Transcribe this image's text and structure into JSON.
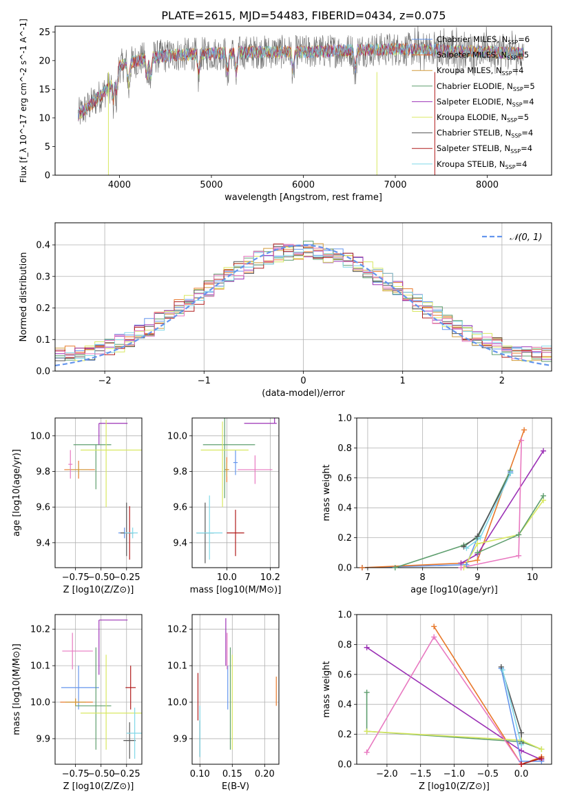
{
  "figure": {
    "title": "PLATE=2615, MJD=54483, FIBERID=0434, z=0.075"
  },
  "colors": {
    "chabrier_miles": "#6495ed",
    "salpeter_miles": "#e8782a",
    "kroupa_miles": "#d19a3a",
    "chabrier_elodie": "#5e9e6e",
    "salpeter_elodie": "#9b30b5",
    "kroupa_elodie": "#d8e860",
    "chabrier_stelib": "#555555",
    "salpeter_stelib": "#b01c1c",
    "kroupa_stelib": "#80d8e8",
    "pink": "#e878c0",
    "normal_line": "#6495ed",
    "grid": "#b0b0b0"
  },
  "chart_data": [
    {
      "id": "spectrum",
      "type": "line",
      "title": "PLATE=2615, MJD=54483, FIBERID=0434, z=0.075",
      "xlabel": "wavelength [Angstrom, rest frame]",
      "ylabel": "Flux [f_λ 10^-17 erg cm^-2 s^-1 A^-1]",
      "xlim": [
        3300,
        8700
      ],
      "ylim": [
        0,
        26
      ],
      "xticks": [
        "4000",
        "5000",
        "6000",
        "7000",
        "8000"
      ],
      "yticks": [
        "0",
        "5",
        "10",
        "15",
        "20",
        "25"
      ],
      "legend_placement": "right",
      "legend": [
        {
          "label": "Chabrier MILES, N",
          "sub": "SSP",
          "suffix": "=6",
          "color_key": "chabrier_miles"
        },
        {
          "label": "Salpeter MILES, N",
          "sub": "SSP",
          "suffix": "=5",
          "color_key": "salpeter_miles"
        },
        {
          "label": "Kroupa MILES, N",
          "sub": "SSP",
          "suffix": "=4",
          "color_key": "kroupa_miles"
        },
        {
          "label": "Chabrier ELODIE, N",
          "sub": "SSP",
          "suffix": "=5",
          "color_key": "chabrier_elodie"
        },
        {
          "label": "Salpeter ELODIE, N",
          "sub": "SSP",
          "suffix": "=4",
          "color_key": "salpeter_elodie"
        },
        {
          "label": "Kroupa ELODIE, N",
          "sub": "SSP",
          "suffix": "=5",
          "color_key": "kroupa_elodie"
        },
        {
          "label": "Chabrier STELIB, N",
          "sub": "SSP",
          "suffix": "=4",
          "color_key": "chabrier_stelib"
        },
        {
          "label": "Salpeter STELIB, N",
          "sub": "SSP",
          "suffix": "=4",
          "color_key": "salpeter_stelib"
        },
        {
          "label": "Kroupa STELIB, N",
          "sub": "SSP",
          "suffix": "=4",
          "color_key": "kroupa_stelib"
        }
      ],
      "continuum_x": [
        3550,
        3700,
        3900,
        4000,
        4300,
        4600,
        5000,
        5500,
        6000,
        6500,
        7000,
        7500,
        8000,
        8400
      ],
      "continuum_y": [
        10.5,
        12.5,
        15.5,
        19.0,
        20.5,
        21.0,
        21.2,
        21.5,
        21.5,
        21.8,
        22.0,
        21.8,
        21.5,
        21.2
      ]
    },
    {
      "id": "residuals",
      "type": "area",
      "xlabel": "(data-model)/error",
      "ylabel": "Normed distribution",
      "xlim": [
        -2.5,
        2.5
      ],
      "ylim": [
        0,
        0.47
      ],
      "xticks": [
        "−2",
        "−1",
        "0",
        "1",
        "2"
      ],
      "yticks": [
        "0.0",
        "0.1",
        "0.2",
        "0.3",
        "0.4"
      ],
      "legend": [
        {
          "label": "𝒩(0, 1)",
          "color_key": "normal_line"
        }
      ],
      "legend_placement": "top-right",
      "bin_width": 0.1,
      "normal_curve": {
        "mu": 0,
        "sigma": 1
      }
    },
    {
      "id": "age-vs-Z",
      "type": "scatter",
      "xlabel": "Z [log10(Z/Z⊙)]",
      "ylabel": "age [log10(age/yr)]",
      "xlim": [
        -0.95,
        -0.1
      ],
      "ylim": [
        9.26,
        10.1
      ],
      "xticks": [
        "−0.75",
        "−0.50",
        "−0.25"
      ],
      "yticks": [
        "9.4",
        "9.6",
        "9.8",
        "10.0"
      ],
      "points": [
        {
          "c": "chabrier_miles",
          "x": -0.27,
          "y": 9.455,
          "xerr": [
            0.06,
            0.04
          ],
          "yerr": [
            0.03,
            0.03
          ]
        },
        {
          "c": "salpeter_miles",
          "x": -0.72,
          "y": 9.81,
          "xerr": [
            0.14,
            0.16
          ],
          "yerr": [
            0.05,
            0.05
          ]
        },
        {
          "c": "kroupa_miles",
          "x": -0.72,
          "y": 9.81,
          "xerr": [
            0.1,
            0.1
          ],
          "yerr": [
            0.03,
            0.03
          ]
        },
        {
          "c": "chabrier_elodie",
          "x": -0.55,
          "y": 9.95,
          "xerr": [
            0.22,
            0.15
          ],
          "yerr": [
            0.25,
            0.0
          ]
        },
        {
          "c": "salpeter_elodie",
          "x": -0.52,
          "y": 10.07,
          "xerr": [
            0.0,
            0.28
          ],
          "yerr": [
            0.12,
            0.0
          ]
        },
        {
          "c": "kroupa_elodie",
          "x": -0.45,
          "y": 9.92,
          "xerr": [
            0.25,
            0.35
          ],
          "yerr": [
            0.32,
            0.17
          ]
        },
        {
          "c": "chabrier_stelib",
          "x": -0.25,
          "y": 9.455,
          "xerr": [
            0.06,
            0.06
          ],
          "yerr": [
            0.13,
            0.17
          ]
        },
        {
          "c": "salpeter_stelib",
          "x": -0.22,
          "y": 9.455,
          "xerr": [
            0.04,
            0.04
          ],
          "yerr": [
            0.15,
            0.15
          ]
        },
        {
          "c": "kroupa_stelib",
          "x": -0.19,
          "y": 9.455,
          "xerr": [
            0.08,
            0.05
          ],
          "yerr": [
            0.03,
            0.03
          ]
        },
        {
          "c": "pink",
          "x": -0.8,
          "y": 9.84,
          "xerr": [
            0.02,
            0.02
          ],
          "yerr": [
            0.08,
            0.08
          ]
        }
      ]
    },
    {
      "id": "age-vs-mass",
      "type": "scatter",
      "xlabel": "mass [log10(M/M⊙)]",
      "ylabel": "",
      "xlim": [
        9.84,
        10.24
      ],
      "ylim": [
        9.26,
        10.1
      ],
      "xticks": [
        "10.0",
        "10.2"
      ],
      "yticks": [
        "9.4",
        "9.6",
        "9.8",
        "10.0"
      ],
      "points": [
        {
          "c": "chabrier_miles",
          "x": 10.04,
          "y": 9.85,
          "xerr": [
            0.01,
            0.01
          ],
          "yerr": [
            0.07,
            0.07
          ]
        },
        {
          "c": "salpeter_miles",
          "x": 10.0,
          "y": 9.81,
          "xerr": [
            0.01,
            0.01
          ],
          "yerr": [
            0.07,
            0.07
          ]
        },
        {
          "c": "kroupa_miles",
          "x": 10.0,
          "y": 9.81,
          "xerr": [
            0.01,
            0.01
          ],
          "yerr": [
            0.04,
            0.04
          ]
        },
        {
          "c": "chabrier_elodie",
          "x": 9.99,
          "y": 9.95,
          "xerr": [
            0.1,
            0.14
          ],
          "yerr": [
            0.3,
            0.15
          ]
        },
        {
          "c": "salpeter_elodie",
          "x": 10.22,
          "y": 10.07,
          "xerr": [
            0.14,
            0.01
          ],
          "yerr": [
            0.0,
            0.16
          ]
        },
        {
          "c": "kroupa_elodie",
          "x": 9.98,
          "y": 9.92,
          "xerr": [
            0.1,
            0.12
          ],
          "yerr": [
            0.32,
            0.16
          ]
        },
        {
          "c": "chabrier_stelib",
          "x": 9.9,
          "y": 9.455,
          "xerr": [
            0.04,
            0.04
          ],
          "yerr": [
            0.17,
            0.17
          ]
        },
        {
          "c": "salpeter_stelib",
          "x": 10.04,
          "y": 9.455,
          "xerr": [
            0.04,
            0.04
          ],
          "yerr": [
            0.13,
            0.13
          ]
        },
        {
          "c": "kroupa_stelib",
          "x": 9.92,
          "y": 9.455,
          "xerr": [
            0.06,
            0.06
          ],
          "yerr": [
            0.15,
            0.21
          ]
        },
        {
          "c": "pink",
          "x": 10.13,
          "y": 9.81,
          "xerr": [
            0.08,
            0.08
          ],
          "yerr": [
            0.08,
            0.08
          ]
        }
      ]
    },
    {
      "id": "massweight-vs-age",
      "type": "line",
      "xlabel": "age [log10(age/yr)]",
      "ylabel": "mass weight",
      "xlim": [
        6.8,
        10.35
      ],
      "ylim": [
        0,
        1.0
      ],
      "xticks": [
        "7",
        "8",
        "9",
        "10"
      ],
      "yticks": [
        "0.0",
        "0.2",
        "0.4",
        "0.6",
        "0.8",
        "1.0"
      ],
      "series": [
        {
          "c": "chabrier_miles",
          "x": [
            6.9,
            8.8,
            9.0,
            9.6
          ],
          "y": [
            0.0,
            0.02,
            0.2,
            0.64
          ]
        },
        {
          "c": "salpeter_miles",
          "x": [
            6.9,
            8.7,
            9.0,
            9.85
          ],
          "y": [
            0.0,
            0.03,
            0.05,
            0.92
          ]
        },
        {
          "c": "chabrier_elodie",
          "x": [
            7.5,
            8.75,
            9.0,
            9.6
          ],
          "y": [
            0.0,
            0.15,
            0.2,
            0.65
          ]
        },
        {
          "c": "salpeter_elodie",
          "x": [
            8.7,
            9.0,
            10.2
          ],
          "y": [
            0.03,
            0.09,
            0.78
          ]
        },
        {
          "c": "kroupa_elodie",
          "x": [
            8.75,
            9.0,
            9.75,
            10.2
          ],
          "y": [
            0.0,
            0.16,
            0.22,
            0.45
          ]
        },
        {
          "c": "chabrier_stelib",
          "x": [
            8.75,
            9.0,
            9.6
          ],
          "y": [
            0.14,
            0.21,
            0.63
          ]
        },
        {
          "c": "kroupa_stelib",
          "x": [
            8.8,
            9.05,
            9.6
          ],
          "y": [
            0.13,
            0.2,
            0.63
          ]
        },
        {
          "c": "chabrier_elodie",
          "x": [
            9.0,
            9.75,
            10.2
          ],
          "y": [
            0.1,
            0.22,
            0.48
          ]
        },
        {
          "c": "pink",
          "x": [
            8.7,
            9.75,
            9.8
          ],
          "y": [
            0.0,
            0.08,
            0.85
          ]
        }
      ]
    },
    {
      "id": "mass-vs-Z",
      "type": "scatter",
      "xlabel": "Z [log10(Z/Z⊙)]",
      "ylabel": "mass [log10(M/M⊙)]",
      "xlim": [
        -0.95,
        -0.1
      ],
      "ylim": [
        9.83,
        10.24
      ],
      "xticks": [
        "−0.75",
        "−0.50",
        "−0.25"
      ],
      "yticks": [
        "9.9",
        "10.0",
        "10.1",
        "10.2"
      ],
      "points": [
        {
          "c": "chabrier_miles",
          "x": -0.72,
          "y": 10.04,
          "xerr": [
            0.17,
            0.2
          ],
          "yerr": [
            0.06,
            0.06
          ]
        },
        {
          "c": "salpeter_miles",
          "x": -0.75,
          "y": 10.0,
          "xerr": [
            0.15,
            0.17
          ],
          "yerr": [
            0.01,
            0.01
          ]
        },
        {
          "c": "kroupa_miles",
          "x": -0.75,
          "y": 10.0,
          "xerr": [
            0.1,
            0.1
          ],
          "yerr": [
            0.01,
            0.01
          ]
        },
        {
          "c": "chabrier_elodie",
          "x": -0.55,
          "y": 9.99,
          "xerr": [
            0.2,
            0.15
          ],
          "yerr": [
            0.12,
            0.16
          ]
        },
        {
          "c": "salpeter_elodie",
          "x": -0.52,
          "y": 10.225,
          "xerr": [
            0.0,
            0.28
          ],
          "yerr": [
            0.15,
            0.0
          ]
        },
        {
          "c": "kroupa_elodie",
          "x": -0.45,
          "y": 9.97,
          "xerr": [
            0.25,
            0.35
          ],
          "yerr": [
            0.1,
            0.16
          ]
        },
        {
          "c": "chabrier_stelib",
          "x": -0.22,
          "y": 9.895,
          "xerr": [
            0.06,
            0.06
          ],
          "yerr": [
            0.05,
            0.05
          ]
        },
        {
          "c": "salpeter_stelib",
          "x": -0.21,
          "y": 10.04,
          "xerr": [
            0.05,
            0.05
          ],
          "yerr": [
            0.06,
            0.06
          ]
        },
        {
          "c": "kroupa_stelib",
          "x": -0.17,
          "y": 9.915,
          "xerr": [
            0.08,
            0.08
          ],
          "yerr": [
            0.07,
            0.07
          ]
        },
        {
          "c": "pink",
          "x": -0.78,
          "y": 10.14,
          "xerr": [
            0.1,
            0.2
          ],
          "yerr": [
            0.05,
            0.05
          ]
        }
      ]
    },
    {
      "id": "mass-vs-EBV",
      "type": "scatter",
      "xlabel": "E(B-V)",
      "ylabel": "",
      "xlim": [
        0.088,
        0.222
      ],
      "ylim": [
        9.83,
        10.24
      ],
      "xticks": [
        "0.10",
        "0.15",
        "0.20"
      ],
      "yticks": [
        "9.9",
        "10.0",
        "10.1",
        "10.2"
      ],
      "points": [
        {
          "c": "chabrier_miles",
          "x": 0.143,
          "y": 10.04,
          "xerr": [
            0.0,
            0.0
          ],
          "yerr": [
            0.06,
            0.06
          ]
        },
        {
          "c": "salpeter_miles",
          "x": 0.218,
          "y": 10.03,
          "xerr": [
            0.0,
            0.0
          ],
          "yerr": [
            0.04,
            0.04
          ]
        },
        {
          "c": "chabrier_elodie",
          "x": 0.147,
          "y": 9.99,
          "xerr": [
            0.0,
            0.0
          ],
          "yerr": [
            0.12,
            0.16
          ]
        },
        {
          "c": "salpeter_elodie",
          "x": 0.14,
          "y": 10.2,
          "xerr": [
            0.0,
            0.0
          ],
          "yerr": [
            0.1,
            0.03
          ]
        },
        {
          "c": "kroupa_elodie",
          "x": 0.15,
          "y": 9.97,
          "xerr": [
            0.0,
            0.0
          ],
          "yerr": [
            0.1,
            0.16
          ]
        },
        {
          "c": "chabrier_stelib",
          "x": 0.1,
          "y": 9.9,
          "xerr": [
            0.0,
            0.0
          ],
          "yerr": [
            0.05,
            0.05
          ]
        },
        {
          "c": "salpeter_stelib",
          "x": 0.097,
          "y": 10.03,
          "xerr": [
            0.0,
            0.0
          ],
          "yerr": [
            0.08,
            0.05
          ]
        },
        {
          "c": "kroupa_stelib",
          "x": 0.1,
          "y": 9.92,
          "xerr": [
            0.0,
            0.0
          ],
          "yerr": [
            0.07,
            0.07
          ]
        },
        {
          "c": "pink",
          "x": 0.142,
          "y": 10.14,
          "xerr": [
            0.0,
            0.0
          ],
          "yerr": [
            0.05,
            0.05
          ]
        }
      ]
    },
    {
      "id": "massweight-vs-Z",
      "type": "line",
      "xlabel": "Z [log10(Z/Z⊙)]",
      "ylabel": "mass weight",
      "xlim": [
        -2.45,
        0.45
      ],
      "ylim": [
        0,
        1.0
      ],
      "xticks": [
        "−2.0",
        "−1.5",
        "−1.0",
        "−0.5",
        "0.0"
      ],
      "yticks": [
        "0.0",
        "0.2",
        "0.4",
        "0.6",
        "0.8",
        "1.0"
      ],
      "series": [
        {
          "c": "salpeter_miles",
          "x": [
            -1.3,
            0.0,
            0.3
          ],
          "y": [
            0.92,
            0.0,
            0.05
          ]
        },
        {
          "c": "salpeter_elodie",
          "x": [
            -2.3,
            0.0,
            0.3
          ],
          "y": [
            0.78,
            0.09,
            0.03
          ]
        },
        {
          "c": "chabrier_elodie",
          "x": [
            -2.3,
            -2.3,
            0.0,
            0.3
          ],
          "y": [
            0.48,
            0.22,
            0.15,
            0.1
          ]
        },
        {
          "c": "kroupa_elodie",
          "x": [
            -2.3,
            0.0,
            0.3
          ],
          "y": [
            0.22,
            0.16,
            0.1
          ]
        },
        {
          "c": "chabrier_miles",
          "x": [
            -0.3,
            0.0,
            0.3
          ],
          "y": [
            0.64,
            0.02,
            0.02
          ]
        },
        {
          "c": "chabrier_stelib",
          "x": [
            -0.3,
            0.0,
            0.0
          ],
          "y": [
            0.65,
            0.21,
            0.14
          ]
        },
        {
          "c": "kroupa_stelib",
          "x": [
            -0.28,
            0.0
          ],
          "y": [
            0.63,
            0.13
          ]
        },
        {
          "c": "pink",
          "x": [
            -2.3,
            -1.3,
            0.0
          ],
          "y": [
            0.08,
            0.85,
            0.0
          ]
        },
        {
          "c": "salpeter_stelib",
          "x": [
            0.0,
            0.3
          ],
          "y": [
            0.0,
            0.04
          ]
        }
      ]
    }
  ]
}
